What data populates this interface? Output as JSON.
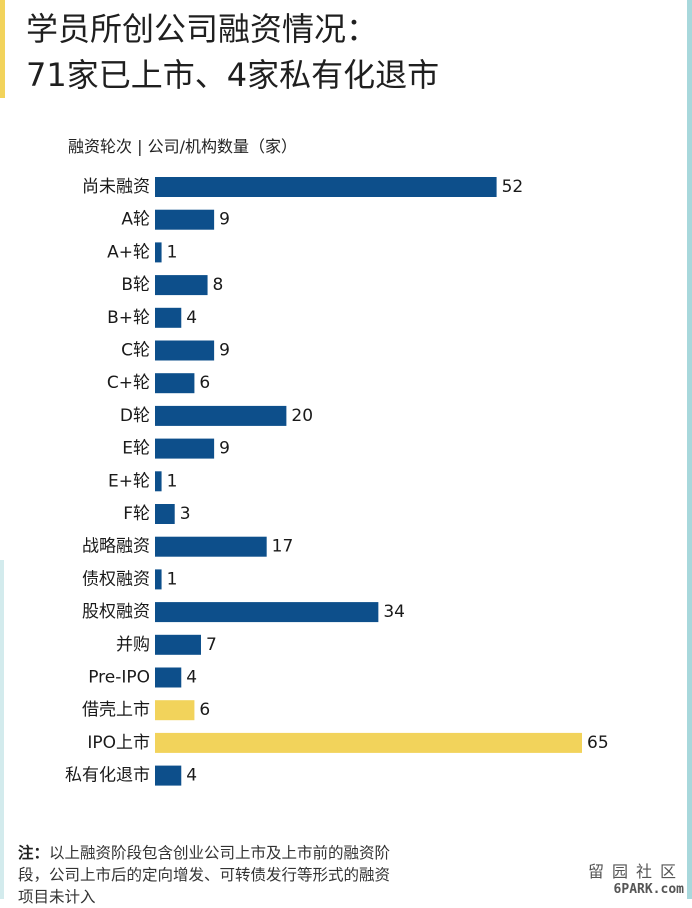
{
  "title_line1": "学员所创公司融资情况：",
  "title_line2": "71家已上市、4家私有化退市",
  "note_prefix": "注：",
  "note_text": "以上融资阶段包含创业公司上市及上市前的融资阶段，公司上市后的定向增发、可转债发行等形式的融资项目未计入",
  "watermark_glyphs": "留园社区",
  "watermark_site": "6PARK.com",
  "colors": {
    "financing_bar": "#0d4f8b",
    "listing_bar": "#f2d35b",
    "accent_left": "#f2d35b",
    "frame": "#a8d8dc"
  },
  "chart_data": {
    "type": "bar",
    "orientation": "horizontal",
    "header": "融资轮次 | 公司/机构数量（家）",
    "categories": [
      "尚未融资",
      "A轮",
      "A+轮",
      "B轮",
      "B+轮",
      "C轮",
      "C+轮",
      "D轮",
      "E轮",
      "E+轮",
      "F轮",
      "战略融资",
      "债权融资",
      "股权融资",
      "并购",
      "Pre-IPO",
      "借壳上市",
      "IPO上市",
      "私有化退市"
    ],
    "values": [
      52,
      9,
      1,
      8,
      4,
      9,
      6,
      20,
      9,
      1,
      3,
      17,
      1,
      34,
      7,
      4,
      6,
      65,
      4
    ],
    "highlight": [
      "借壳上市",
      "IPO上市"
    ],
    "xlim": [
      0,
      65
    ],
    "grid": false,
    "legend": "none"
  }
}
